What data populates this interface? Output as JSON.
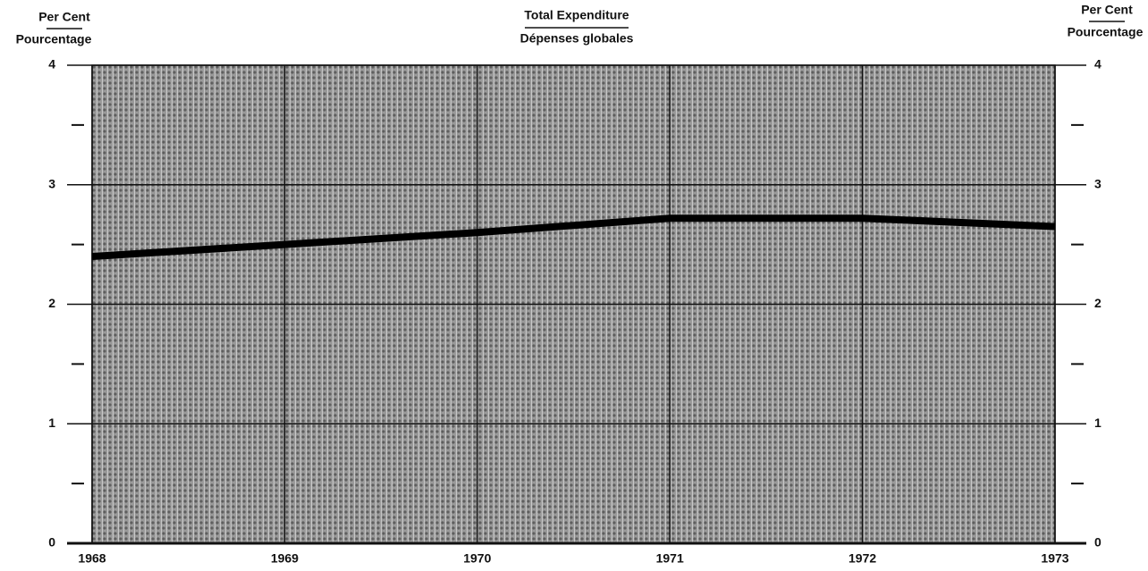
{
  "chart_data": {
    "type": "line",
    "title": "Total Expenditure",
    "subtitle": "Dépenses globales",
    "ylabel": "Per Cent",
    "ylabel2": "Pourcentage",
    "y2label": "Per Cent",
    "y2label2": "Pourcentage",
    "x": [
      1968,
      1969,
      1970,
      1971,
      1972,
      1973
    ],
    "xlim": [
      1968,
      1973
    ],
    "xticks": [
      1968,
      1969,
      1970,
      1971,
      1972,
      1973
    ],
    "ylim": [
      0,
      4
    ],
    "yticks": [
      0,
      1,
      2,
      3,
      4
    ],
    "yminorticks": [
      0.5,
      1.5,
      2.5,
      3.5
    ],
    "y2lim": [
      0,
      4
    ],
    "y2ticks": [
      0,
      1,
      2,
      3,
      4
    ],
    "grid": true,
    "series": [
      {
        "color": "#000000",
        "values": [
          2.4,
          2.5,
          2.6,
          2.72,
          2.72,
          2.65
        ]
      }
    ]
  }
}
